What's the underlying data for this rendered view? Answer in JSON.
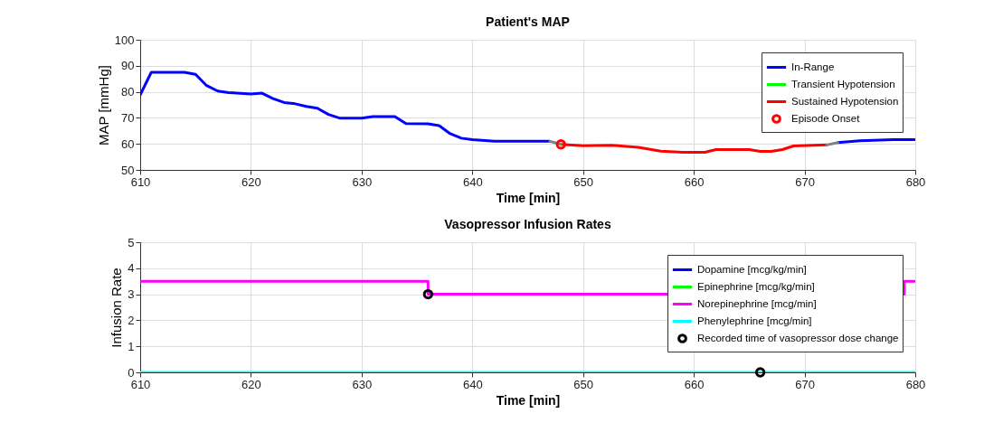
{
  "chart_data": [
    {
      "type": "line",
      "title": "Patient's MAP",
      "xlabel": "Time [min]",
      "ylabel": "MAP [mmHg]",
      "xlim": [
        610,
        680
      ],
      "xticks": [
        610,
        620,
        630,
        640,
        650,
        660,
        670,
        680
      ],
      "ylim": [
        50,
        100
      ],
      "yticks": [
        50,
        60,
        70,
        80,
        90,
        100
      ],
      "grid": true,
      "legend": "top right",
      "line_style": "solid",
      "series": [
        {
          "name": "In-Range",
          "color": "#0000ff",
          "x": [
            610,
            611,
            614,
            615,
            616,
            617,
            618,
            620,
            621,
            622,
            623,
            624,
            625,
            626,
            627,
            628,
            630,
            631,
            633,
            634,
            636,
            637,
            638,
            639,
            640,
            642,
            647,
            660,
            673,
            675,
            678,
            680
          ],
          "values": [
            78.8,
            87.5,
            87.5,
            86.7,
            82.4,
            80.3,
            79.7,
            79.2,
            79.5,
            77.4,
            75.9,
            75.4,
            74.4,
            73.7,
            71.3,
            69.9,
            69.9,
            70.5,
            70.5,
            67.8,
            67.7,
            67,
            63.9,
            62.2,
            61.6,
            61,
            61,
            null,
            60.5,
            61.2,
            61.6,
            61.6
          ]
        },
        {
          "name": "Transient Hypotension",
          "color": "#00ff00"
        },
        {
          "name": "Sustained Hypotension",
          "color": "#ff0000",
          "x": [
            648,
            650,
            652.6,
            655,
            657,
            659,
            661,
            662,
            665,
            666,
            667,
            668,
            669,
            672
          ],
          "values": [
            59.8,
            59.3,
            59.5,
            58.7,
            57.2,
            56.8,
            56.8,
            57.8,
            57.8,
            57.1,
            57.1,
            57.8,
            59.2,
            59.6
          ]
        },
        {
          "color": "#808080",
          "x": [
            647,
            648,
            660,
            672,
            673
          ],
          "values": [
            61,
            59.8,
            null,
            59.6,
            60.5
          ]
        },
        {
          "name": "Episode Onset",
          "type": "scatter",
          "marker": "circle",
          "color": "#ff0000",
          "x": [
            648
          ],
          "values": [
            59.8
          ]
        }
      ]
    },
    {
      "type": "step",
      "title": "Vasopressor Infusion Rates",
      "xlabel": "Time [min]",
      "ylabel": "Infusion Rate",
      "xlim": [
        610,
        680
      ],
      "xticks": [
        610,
        620,
        630,
        640,
        650,
        660,
        670,
        680
      ],
      "ylim": [
        0,
        5
      ],
      "yticks": [
        0,
        1,
        2,
        3,
        4,
        5
      ],
      "grid": true,
      "legend": "top right",
      "line_style": "solid",
      "series": [
        {
          "name": "Dopamine [mcg/kg/min]",
          "color": "#0000ff"
        },
        {
          "name": "Epinephrine [mcg/kg/min]",
          "color": "#00ff00"
        },
        {
          "name": "Norepinephrine [mcg/min]",
          "color": "#ff00ff",
          "x": [
            610,
            636,
            679,
            680
          ],
          "values": [
            3.5,
            3,
            3.5,
            3.5
          ]
        },
        {
          "name": "Phenylephrine [mcg/min]",
          "color": "#00ffff",
          "x": [
            610,
            680
          ],
          "values": [
            0,
            0
          ]
        },
        {
          "name": "Recorded time of vasopressor dose change",
          "type": "scatter",
          "marker": "circle",
          "color": "#000000",
          "x": [
            636,
            666
          ],
          "values": [
            3,
            0
          ]
        }
      ]
    }
  ]
}
